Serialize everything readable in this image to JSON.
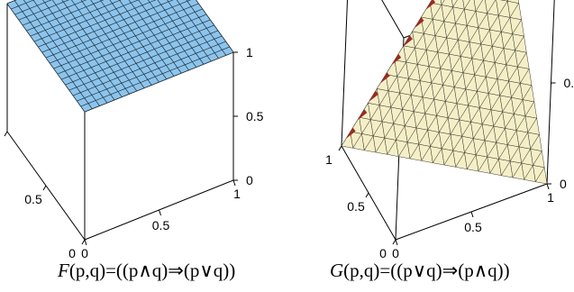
{
  "chart_data": [
    {
      "type": "surface",
      "caption": "F(p,q)=((p∧q)⇒(p∨q))",
      "caption_parts": {
        "fn": "F",
        "args": "(p,q)",
        "rest": "=((p∧q)⇒(p∨q))"
      },
      "x_ticks": [
        "0",
        "0.5",
        "1"
      ],
      "y_ticks": [
        "0",
        "0.5",
        "1"
      ],
      "z_ticks": [
        "0",
        "0.5",
        "1"
      ],
      "xlim": [
        0,
        1
      ],
      "ylim": [
        0,
        1
      ],
      "zlim": [
        0,
        1
      ],
      "surface_value": 1,
      "color": "#8cc4ec"
    },
    {
      "type": "surface",
      "caption": "G(p,q)=((p∨q)⇒(p∧q))",
      "caption_parts": {
        "fn": "G",
        "args": "(p,q)",
        "rest": "=((p∨q)⇒(p∧q))"
      },
      "x_ticks": [
        "0",
        "0.5",
        "1"
      ],
      "y_ticks": [
        "0",
        "0.5",
        "1"
      ],
      "z_ticks": [
        "0",
        "0.5",
        "1"
      ],
      "visible_z_ticks": [
        "0",
        "0.",
        "1"
      ],
      "xlim": [
        0,
        1
      ],
      "ylim": [
        0,
        1
      ],
      "zlim": [
        0,
        1
      ],
      "color": "#f5efc8",
      "shadow_color": "#1a2350",
      "edge_color": "#9c2a20"
    }
  ]
}
